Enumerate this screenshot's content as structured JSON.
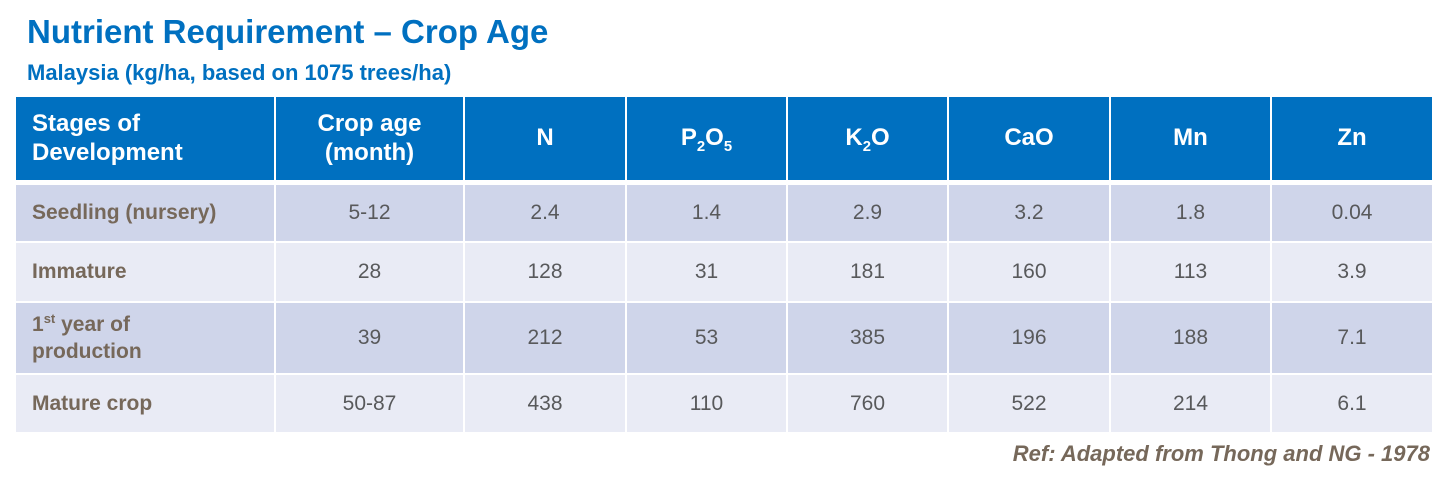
{
  "title": "Nutrient Requirement – Crop Age",
  "subtitle": "Malaysia (kg/ha, based on 1075 trees/ha)",
  "table": {
    "headers": {
      "stage_line1": "Stages of",
      "stage_line2": "Development",
      "age_line1": "Crop age",
      "age_line2": "(month)",
      "n": "N",
      "p_base": "P",
      "p_sub1": "2",
      "p_mid": "O",
      "p_sub2": "5",
      "k_base": "K",
      "k_sub": "2",
      "k_tail": "O",
      "cao": "CaO",
      "mn": "Mn",
      "zn": "Zn"
    },
    "rows": [
      {
        "stage": "Seedling (nursery)",
        "age": "5-12",
        "n": "2.4",
        "p2o5": "1.4",
        "k2o": "2.9",
        "cao": "3.2",
        "mn": "1.8",
        "zn": "0.04"
      },
      {
        "stage": "Immature",
        "age": "28",
        "n": "128",
        "p2o5": "31",
        "k2o": "181",
        "cao": "160",
        "mn": "113",
        "zn": "3.9"
      },
      {
        "stage_num": "1",
        "stage_sup": "st",
        "stage_rest": " year of",
        "stage_line2": "production",
        "age": "39",
        "n": "212",
        "p2o5": "53",
        "k2o": "385",
        "cao": "196",
        "mn": "188",
        "zn": "7.1"
      },
      {
        "stage": "Mature crop",
        "age": "50-87",
        "n": "438",
        "p2o5": "110",
        "k2o": "760",
        "cao": "522",
        "mn": "214",
        "zn": "6.1"
      }
    ]
  },
  "reference": "Ref: Adapted from Thong and NG  - 1978",
  "colors": {
    "title": "#0070c0",
    "header_bg": "#0070c0",
    "row_dark": "#cfd5ea",
    "row_light": "#e9ebf5",
    "stage_text": "#76685a",
    "value_text": "#58595b"
  }
}
